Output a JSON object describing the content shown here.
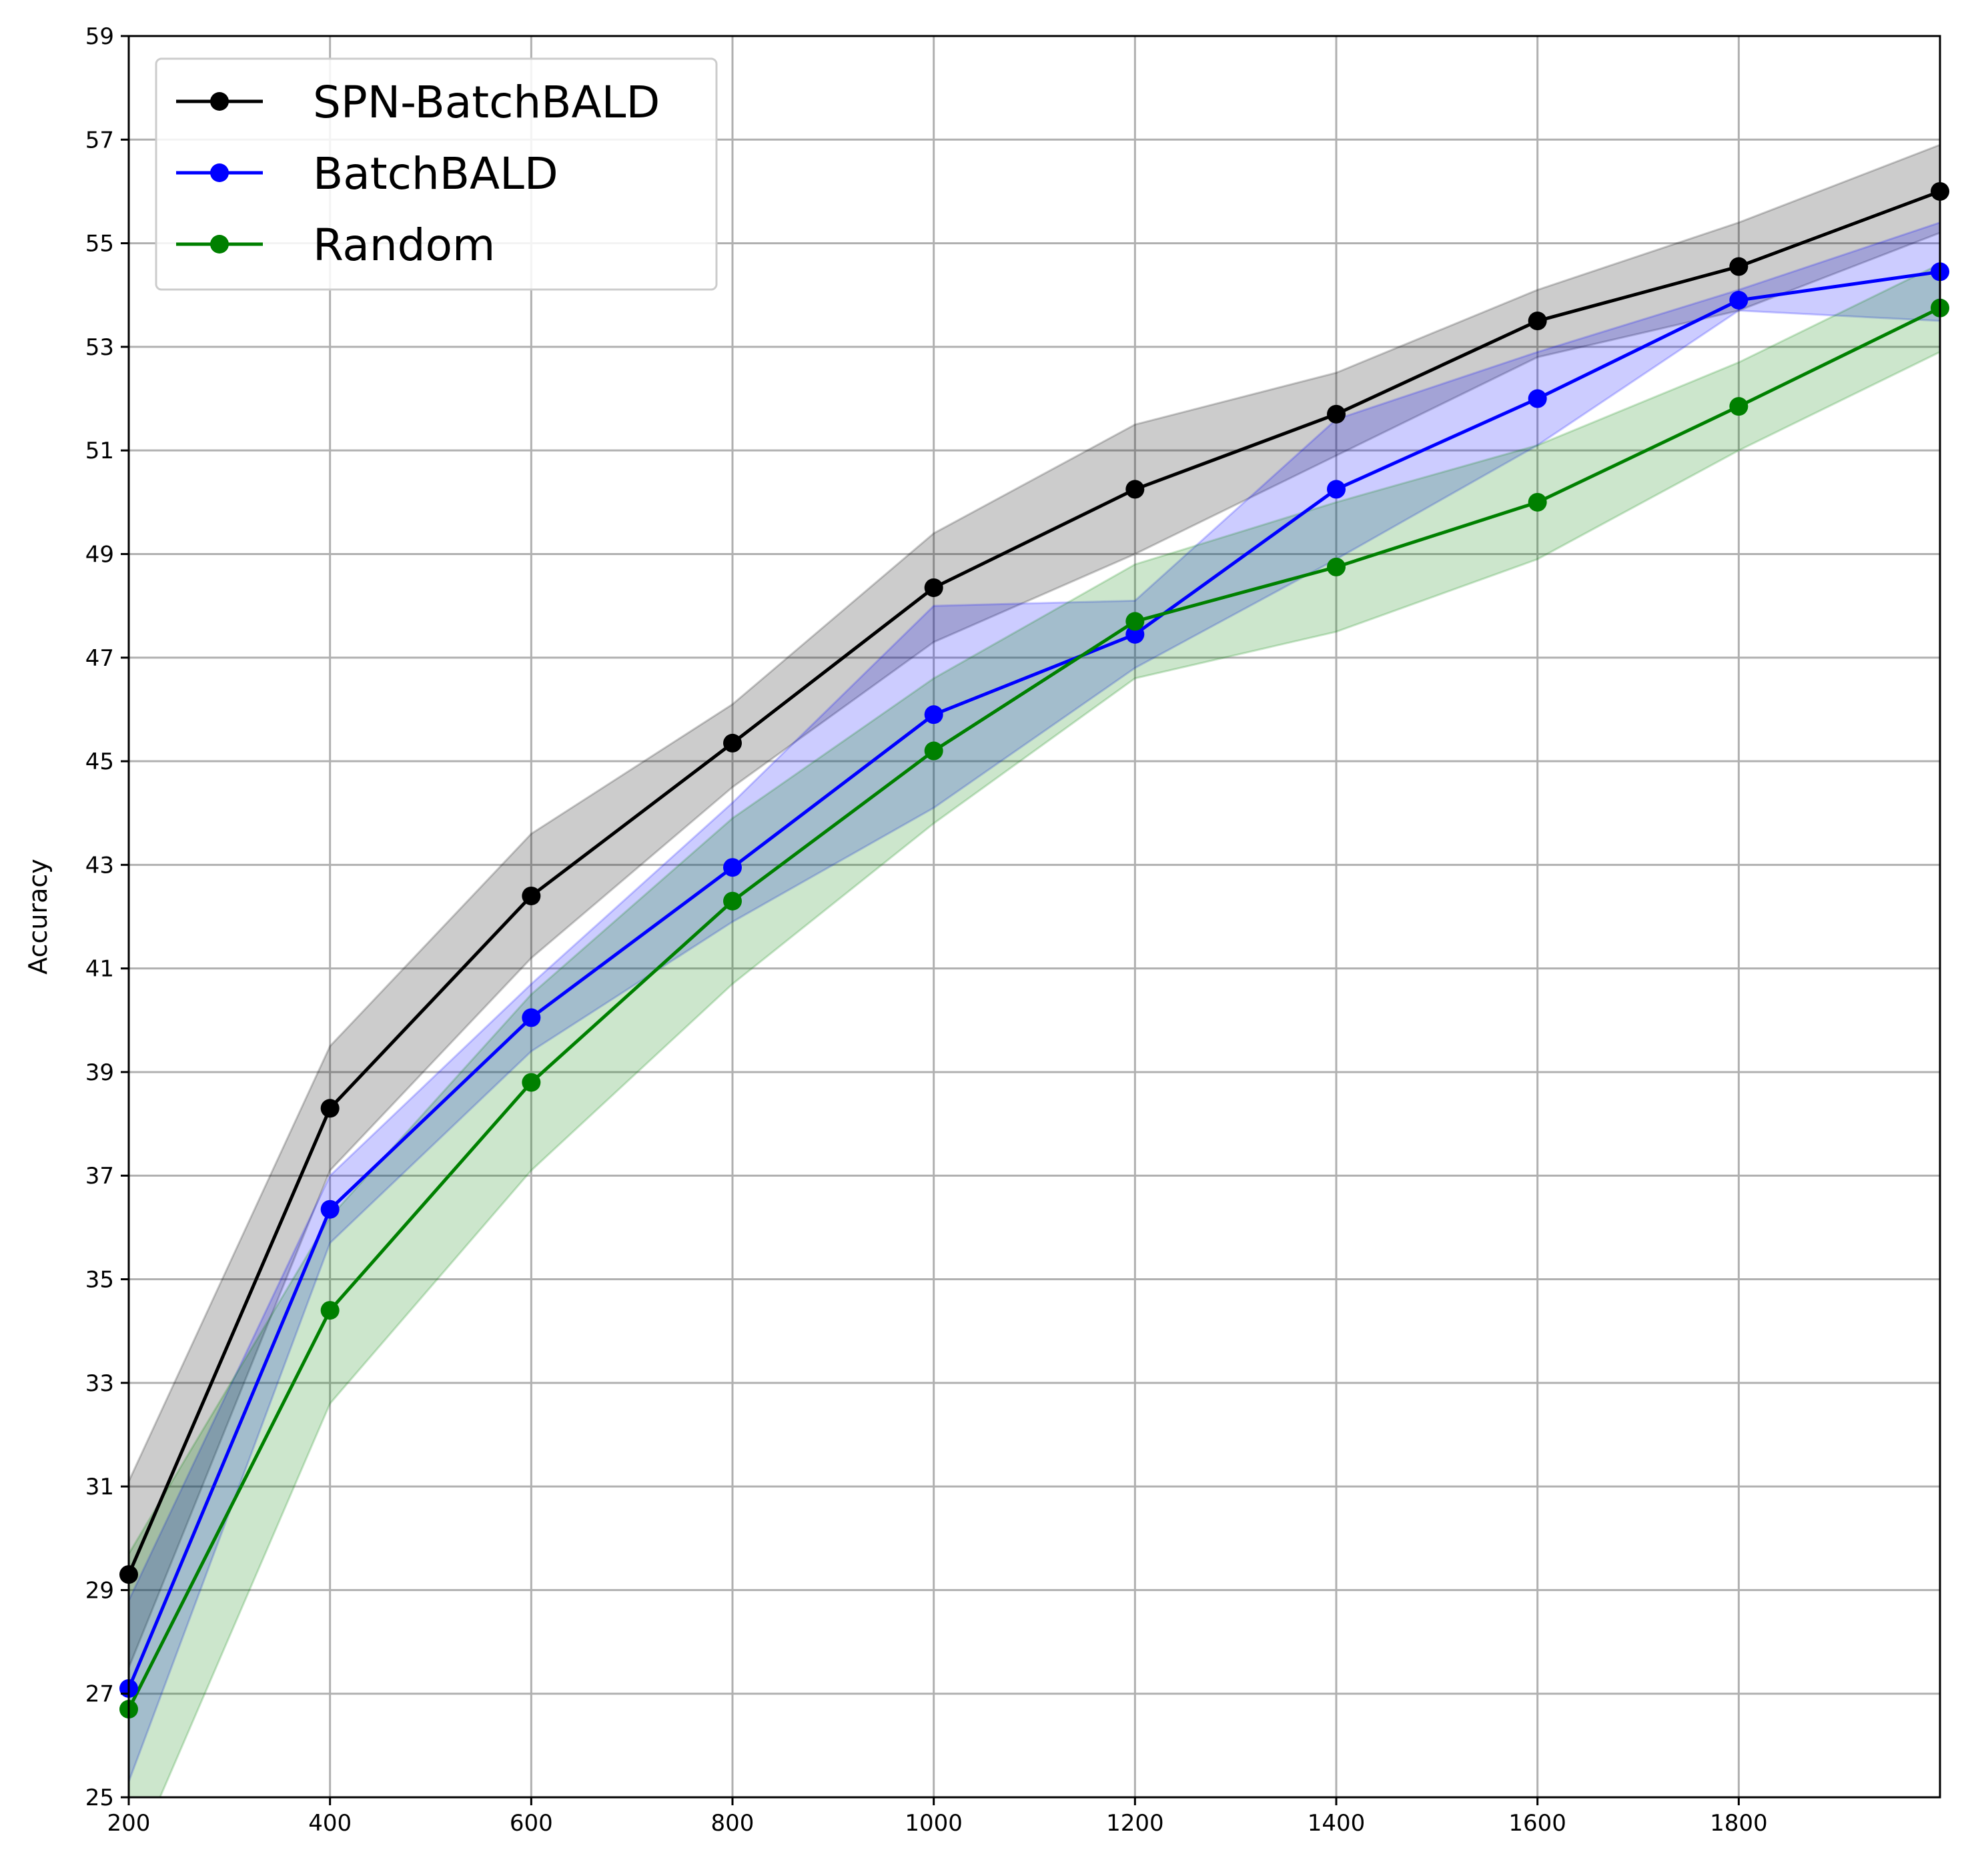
{
  "chart_data": {
    "type": "line",
    "title": "",
    "xlabel": "",
    "ylabel": "Accuracy",
    "xlim": [
      200,
      2000
    ],
    "ylim": [
      25,
      59
    ],
    "x": [
      200,
      400,
      600,
      800,
      1000,
      1200,
      1400,
      1600,
      1800,
      2000
    ],
    "xticks": [
      "200",
      "400",
      "600",
      "800",
      "1000",
      "1200",
      "1400",
      "1600",
      "1800"
    ],
    "yticks": [
      "25",
      "27",
      "29",
      "31",
      "33",
      "35",
      "37",
      "39",
      "41",
      "43",
      "45",
      "47",
      "49",
      "51",
      "53",
      "55",
      "57",
      "59"
    ],
    "grid": true,
    "legend_position": "top-left",
    "series": [
      {
        "name": "SPN-BatchBALD",
        "color": "#000000",
        "values": [
          29.3,
          38.3,
          42.4,
          45.35,
          48.35,
          50.25,
          51.7,
          53.5,
          54.55,
          56.0
        ],
        "lower": [
          27.5,
          37.1,
          41.2,
          44.5,
          47.3,
          49.0,
          50.9,
          52.8,
          53.7,
          55.2
        ],
        "upper": [
          31.1,
          39.5,
          43.6,
          46.1,
          49.4,
          51.5,
          52.5,
          54.1,
          55.4,
          56.9
        ]
      },
      {
        "name": "BatchBALD",
        "color": "#0000ff",
        "values": [
          27.1,
          36.35,
          40.05,
          42.95,
          45.9,
          47.45,
          50.25,
          52.0,
          53.9,
          54.45
        ],
        "lower": [
          25.3,
          35.7,
          39.4,
          41.9,
          44.1,
          46.8,
          48.9,
          51.1,
          53.7,
          53.5
        ],
        "upper": [
          28.8,
          37.0,
          40.7,
          44.2,
          48.0,
          48.1,
          51.6,
          52.9,
          54.1,
          55.4
        ]
      },
      {
        "name": "Random",
        "color": "#008000",
        "values": [
          26.7,
          34.4,
          38.8,
          42.3,
          45.2,
          47.7,
          48.75,
          50.0,
          51.85,
          53.75
        ],
        "lower": [
          23.6,
          32.6,
          37.1,
          40.7,
          43.8,
          46.6,
          47.5,
          48.9,
          51.0,
          52.9
        ],
        "upper": [
          29.7,
          36.2,
          40.5,
          43.9,
          46.6,
          48.8,
          50.0,
          51.1,
          52.7,
          54.6
        ]
      }
    ]
  }
}
